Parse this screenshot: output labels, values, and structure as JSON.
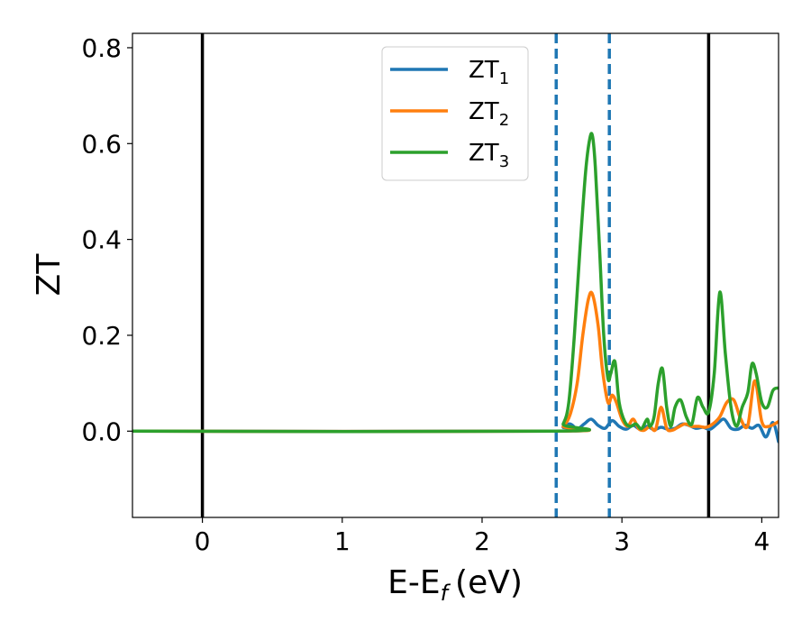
{
  "chart_data": {
    "type": "line",
    "xlabel": "E-E",
    "xlabel_sub": "f",
    "xlabel_unit": "(eV)",
    "ylabel": "ZT",
    "xlim": [
      -0.5,
      4.12
    ],
    "ylim": [
      -0.18,
      0.83
    ],
    "xticks": [
      0,
      1,
      2,
      3,
      4
    ],
    "xtick_labels": [
      "0",
      "1",
      "2",
      "3",
      "4"
    ],
    "yticks": [
      0.0,
      0.2,
      0.4,
      0.6,
      0.8
    ],
    "ytick_labels": [
      "0.0",
      "0.2",
      "0.4",
      "0.6",
      "0.8"
    ],
    "grid": false,
    "legend": "top-center",
    "vlines_solid": [
      0.0,
      3.62
    ],
    "vlines_dashed": [
      2.53,
      2.91
    ],
    "series": [
      {
        "name": "ZT",
        "name_sub": "1",
        "color": "#1f77b4",
        "x": [
          -0.5,
          2.53,
          2.58,
          2.63,
          2.68,
          2.73,
          2.78,
          2.83,
          2.88,
          2.93,
          2.98,
          3.03,
          3.08,
          3.13,
          3.18,
          3.23,
          3.28,
          3.33,
          3.38,
          3.43,
          3.48,
          3.53,
          3.58,
          3.63,
          3.68,
          3.73,
          3.78,
          3.83,
          3.88,
          3.93,
          3.98,
          4.03,
          4.08,
          4.12
        ],
        "y": [
          0.0,
          0.0,
          0.008,
          0.015,
          0.005,
          0.015,
          0.025,
          0.012,
          0.006,
          0.022,
          0.01,
          0.004,
          0.012,
          0.004,
          0.01,
          0.003,
          0.008,
          0.004,
          0.006,
          0.015,
          0.012,
          0.006,
          0.008,
          0.004,
          0.015,
          0.025,
          0.006,
          0.004,
          0.012,
          0.006,
          0.012,
          -0.012,
          0.018,
          -0.022
        ]
      },
      {
        "name": "ZT",
        "name_sub": "2",
        "color": "#ff7f0e",
        "x": [
          -0.5,
          2.53,
          2.58,
          2.63,
          2.68,
          2.72,
          2.76,
          2.79,
          2.83,
          2.86,
          2.9,
          2.93,
          2.96,
          3.0,
          3.04,
          3.08,
          3.12,
          3.16,
          3.2,
          3.24,
          3.28,
          3.32,
          3.36,
          3.4,
          3.45,
          3.5,
          3.55,
          3.6,
          3.65,
          3.7,
          3.75,
          3.8,
          3.85,
          3.9,
          3.95,
          4.0,
          4.05,
          4.12
        ],
        "y": [
          0.0,
          0.0,
          0.01,
          0.035,
          0.1,
          0.2,
          0.275,
          0.285,
          0.22,
          0.13,
          0.06,
          0.075,
          0.06,
          0.025,
          0.01,
          0.025,
          0.005,
          0.002,
          0.01,
          0.003,
          0.05,
          0.006,
          0.002,
          0.008,
          0.015,
          0.01,
          0.01,
          0.008,
          0.015,
          0.03,
          0.06,
          0.065,
          0.025,
          0.012,
          0.105,
          0.02,
          0.01,
          0.02
        ]
      },
      {
        "name": "ZT",
        "name_sub": "3",
        "color": "#2ca02c",
        "x": [
          -0.5,
          2.53,
          2.58,
          2.62,
          2.66,
          2.7,
          2.74,
          2.77,
          2.79,
          2.81,
          2.84,
          2.87,
          2.9,
          2.92,
          2.95,
          2.98,
          3.02,
          3.06,
          3.1,
          3.14,
          3.18,
          3.2,
          3.23,
          3.26,
          3.29,
          3.32,
          3.35,
          3.38,
          3.42,
          3.46,
          3.5,
          3.54,
          3.58,
          3.62,
          3.66,
          3.7,
          3.74,
          3.78,
          3.82,
          3.86,
          3.9,
          3.93,
          3.96,
          4.0,
          4.04,
          4.08,
          4.12
        ],
        "y": [
          0.0,
          0.0,
          0.015,
          0.06,
          0.2,
          0.38,
          0.54,
          0.61,
          0.615,
          0.55,
          0.38,
          0.2,
          0.11,
          0.12,
          0.145,
          0.06,
          0.02,
          0.01,
          0.015,
          0.005,
          0.025,
          0.01,
          0.03,
          0.1,
          0.13,
          0.05,
          0.01,
          0.05,
          0.065,
          0.03,
          0.015,
          0.07,
          0.05,
          0.04,
          0.12,
          0.29,
          0.16,
          0.05,
          0.01,
          0.05,
          0.08,
          0.14,
          0.12,
          0.06,
          0.05,
          0.085,
          0.09
        ]
      }
    ]
  }
}
